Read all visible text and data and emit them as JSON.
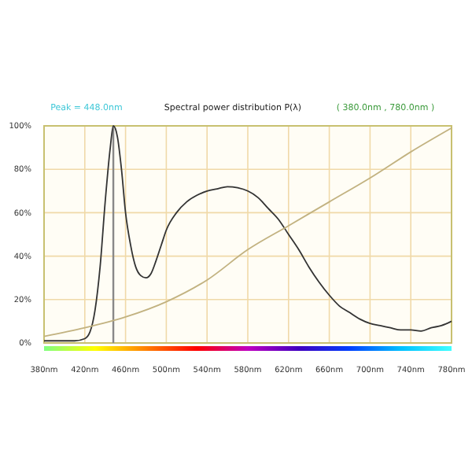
{
  "chart_data": {
    "type": "line",
    "title": "Spectral power distribution P(λ)",
    "subtitle": "( 380.0nm , 780.0nm )",
    "annotations": [
      "Peak = 448.0nm"
    ],
    "xlim": [
      380,
      780
    ],
    "xticks": [
      {
        "value": 380,
        "label": "380nm"
      },
      {
        "value": 420,
        "label": "420nm"
      },
      {
        "value": 460,
        "label": "460nm"
      },
      {
        "value": 500,
        "label": "500nm"
      },
      {
        "value": 540,
        "label": "540nm"
      },
      {
        "value": 580,
        "label": "580nm"
      },
      {
        "value": 620,
        "label": "620nm"
      },
      {
        "value": 660,
        "label": "660nm"
      },
      {
        "value": 700,
        "label": "700nm"
      },
      {
        "value": 740,
        "label": "740nm"
      },
      {
        "value": 780,
        "label": "780nm"
      }
    ],
    "ylim": [
      0,
      100
    ],
    "yticks": [
      {
        "value": 0,
        "label": "0%"
      },
      {
        "value": 20,
        "label": "20%"
      },
      {
        "value": 40,
        "label": "40%"
      },
      {
        "value": 60,
        "label": "60%"
      },
      {
        "value": 80,
        "label": "80%"
      },
      {
        "value": 100,
        "label": "100%"
      }
    ],
    "grid": true,
    "marker": "none",
    "line_style": "solid",
    "ref_lines": [
      {
        "axis": "x",
        "value": 448,
        "color": "#888888"
      }
    ],
    "series": [
      {
        "color": "#333333",
        "x": [
          380,
          400,
          410,
          420,
          425,
          430,
          435,
          440,
          445,
          448,
          452,
          456,
          460,
          465,
          470,
          475,
          480,
          485,
          490,
          495,
          500,
          510,
          520,
          530,
          540,
          550,
          560,
          570,
          580,
          590,
          600,
          610,
          620,
          630,
          640,
          650,
          660,
          670,
          680,
          690,
          700,
          710,
          720,
          730,
          740,
          750,
          760,
          770,
          780
        ],
        "values": [
          1,
          1,
          1,
          2,
          5,
          15,
          35,
          65,
          90,
          100,
          95,
          80,
          60,
          45,
          35,
          31,
          30,
          32,
          38,
          45,
          52,
          60,
          65,
          68,
          70,
          71,
          72,
          71.5,
          70,
          67,
          62,
          57,
          50,
          43,
          35,
          28,
          22,
          17,
          14,
          11,
          9,
          8,
          7,
          6,
          6,
          5.5,
          7,
          8,
          10
        ]
      },
      {
        "color": "#c2b280",
        "x": [
          380,
          420,
          460,
          500,
          540,
          580,
          620,
          660,
          700,
          740,
          780
        ],
        "values": [
          3,
          7,
          12,
          19,
          29,
          43,
          54,
          65,
          76,
          88,
          99
        ]
      }
    ]
  }
}
